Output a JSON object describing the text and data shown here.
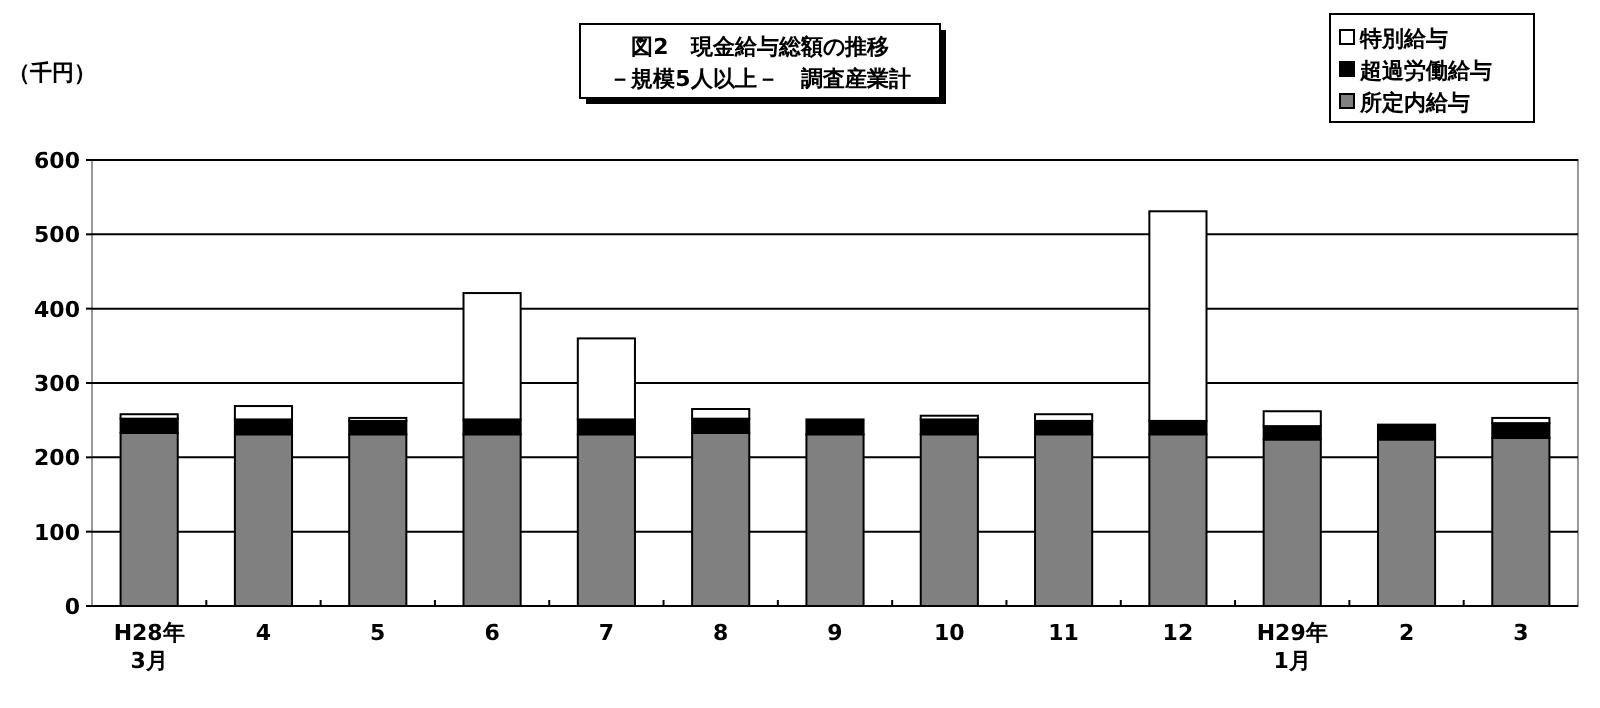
{
  "chart_data": {
    "type": "bar",
    "stacked": true,
    "title": "図2　現金給与総額の推移",
    "subtitle": "－規模5人以上－　調査産業計",
    "ylabel": "（千円）",
    "categories": [
      "H28年\n3月",
      "4",
      "5",
      "6",
      "7",
      "8",
      "9",
      "10",
      "11",
      "12",
      "H29年\n1月",
      "2",
      "3"
    ],
    "series": [
      {
        "name": "所定内給与",
        "color": "#808080",
        "values": [
          233,
          231,
          231,
          231,
          231,
          233,
          231,
          231,
          231,
          231,
          224,
          224,
          226
        ]
      },
      {
        "name": "超過労働給与",
        "color": "#000000",
        "values": [
          19,
          20,
          18,
          20,
          20,
          19,
          20,
          20,
          18,
          18,
          18,
          20,
          20
        ]
      },
      {
        "name": "特別給与",
        "color": "#ffffff",
        "values": [
          6,
          18,
          4,
          170,
          109,
          13,
          0,
          5,
          9,
          282,
          20,
          0,
          7
        ]
      }
    ],
    "ylim": [
      0,
      600
    ],
    "yticks": [
      0,
      100,
      200,
      300,
      400,
      500,
      600
    ],
    "grid": "y",
    "legend": "top right"
  }
}
